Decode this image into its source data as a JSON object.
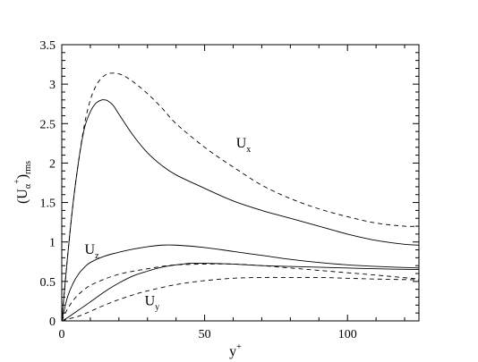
{
  "chart_data": {
    "type": "line",
    "title": "",
    "xlabel": {
      "base": "y",
      "sup": "+"
    },
    "ylabel": {
      "open": "(U",
      "alpha": "α",
      "sup": "+",
      "close": ")",
      "sub": "rms"
    },
    "xlim": [
      0,
      125
    ],
    "ylim": [
      0,
      3.5
    ],
    "xticks": [
      0,
      50,
      100
    ],
    "yticks": [
      0,
      0.5,
      1,
      1.5,
      2,
      2.5,
      3,
      3.5
    ],
    "xtick_labels": [
      "0",
      "50",
      "100"
    ],
    "ytick_labels": [
      "0",
      "0.5",
      "1",
      "1.5",
      "2",
      "2.5",
      "3",
      "3.5"
    ],
    "grid": false,
    "legend": "none",
    "series": [
      {
        "style": "dashed",
        "x": [
          0,
          2,
          4,
          6,
          8,
          10,
          12,
          14,
          16,
          18,
          20,
          22,
          25,
          30,
          35,
          40,
          50,
          60,
          70,
          80,
          90,
          100,
          110,
          120,
          125
        ],
        "y": [
          0,
          0.8,
          1.5,
          2.05,
          2.5,
          2.8,
          2.98,
          3.08,
          3.13,
          3.14,
          3.13,
          3.1,
          3.03,
          2.88,
          2.7,
          2.5,
          2.2,
          1.95,
          1.72,
          1.55,
          1.42,
          1.32,
          1.24,
          1.2,
          1.2
        ]
      },
      {
        "style": "solid",
        "x": [
          0,
          2,
          4,
          6,
          8,
          10,
          12,
          14,
          15,
          16,
          18,
          20,
          25,
          30,
          35,
          40,
          50,
          60,
          70,
          80,
          90,
          100,
          110,
          120,
          125
        ],
        "y": [
          0,
          0.8,
          1.5,
          2.05,
          2.45,
          2.65,
          2.76,
          2.8,
          2.8,
          2.79,
          2.73,
          2.62,
          2.35,
          2.13,
          1.97,
          1.85,
          1.68,
          1.52,
          1.4,
          1.3,
          1.2,
          1.1,
          1.02,
          0.97,
          0.96
        ]
      },
      {
        "style": "solid",
        "x": [
          0,
          2,
          4,
          6,
          8,
          10,
          15,
          20,
          25,
          30,
          35,
          40,
          50,
          60,
          70,
          80,
          90,
          100,
          110,
          125
        ],
        "y": [
          0,
          0.3,
          0.48,
          0.6,
          0.68,
          0.74,
          0.82,
          0.87,
          0.91,
          0.94,
          0.96,
          0.96,
          0.93,
          0.88,
          0.83,
          0.78,
          0.74,
          0.71,
          0.69,
          0.67
        ]
      },
      {
        "style": "dashed",
        "x": [
          0,
          2,
          4,
          6,
          8,
          10,
          15,
          20,
          25,
          30,
          35,
          40,
          50,
          60,
          70,
          80,
          90,
          100,
          110,
          125
        ],
        "y": [
          0,
          0.15,
          0.26,
          0.34,
          0.4,
          0.45,
          0.53,
          0.59,
          0.63,
          0.66,
          0.69,
          0.71,
          0.72,
          0.72,
          0.7,
          0.67,
          0.64,
          0.61,
          0.58,
          0.53
        ]
      },
      {
        "style": "solid",
        "x": [
          0,
          2,
          4,
          6,
          8,
          10,
          15,
          20,
          25,
          30,
          35,
          40,
          45,
          50,
          60,
          70,
          80,
          90,
          100,
          110,
          125
        ],
        "y": [
          0,
          0.04,
          0.09,
          0.14,
          0.19,
          0.24,
          0.37,
          0.48,
          0.57,
          0.63,
          0.68,
          0.71,
          0.73,
          0.73,
          0.72,
          0.7,
          0.69,
          0.68,
          0.67,
          0.66,
          0.65
        ]
      },
      {
        "style": "dashed",
        "x": [
          0,
          2,
          4,
          6,
          8,
          10,
          15,
          20,
          25,
          30,
          40,
          50,
          60,
          70,
          80,
          90,
          100,
          110,
          125
        ],
        "y": [
          0,
          0.02,
          0.04,
          0.06,
          0.09,
          0.12,
          0.2,
          0.27,
          0.33,
          0.38,
          0.46,
          0.51,
          0.54,
          0.55,
          0.55,
          0.55,
          0.54,
          0.53,
          0.52
        ]
      }
    ],
    "annotations": [
      {
        "base": "U",
        "sub": "x",
        "x": 61,
        "y": 2.2
      },
      {
        "base": "U",
        "sub": "z",
        "x": 8,
        "y": 0.85
      },
      {
        "base": "U",
        "sub": "y",
        "x": 29,
        "y": 0.2
      }
    ]
  }
}
